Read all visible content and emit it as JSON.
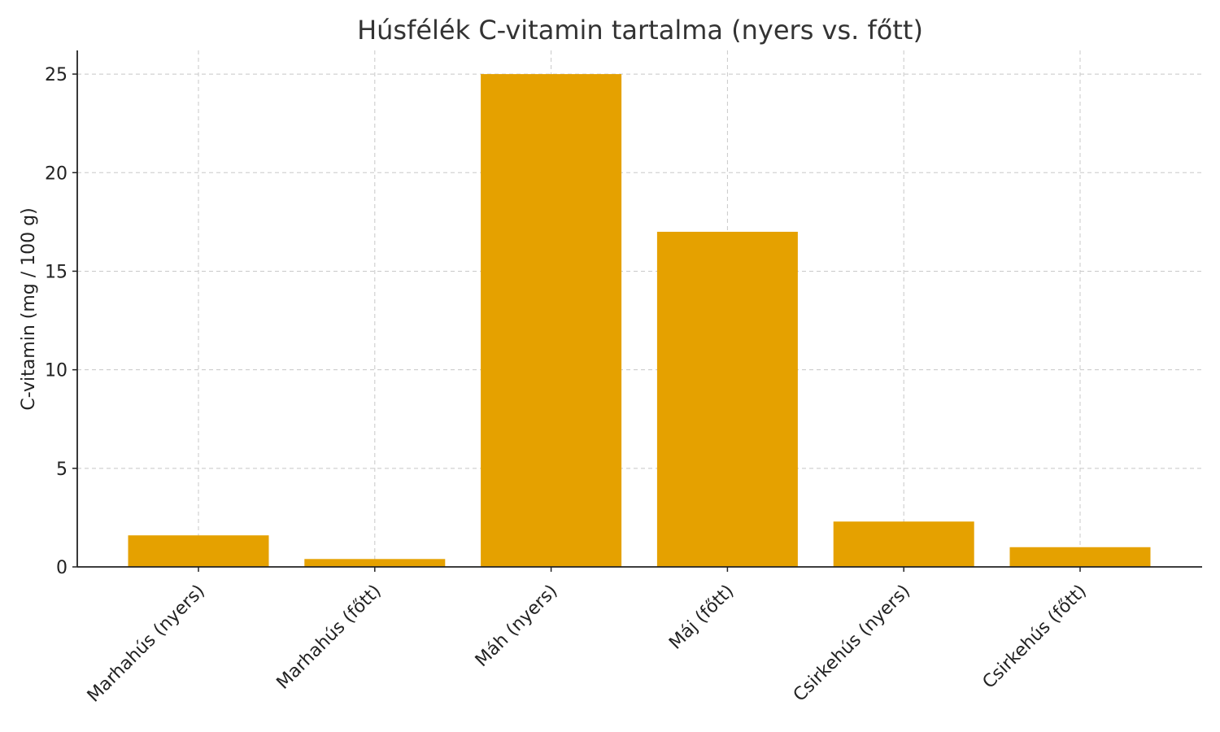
{
  "chart_data": {
    "type": "bar",
    "title": "Húsfélék C-vitamin tartalma (nyers vs. főtt)",
    "xlabel": "",
    "ylabel": "C-vitamin (mg / 100 g)",
    "categories": [
      "Marhahús (nyers)",
      "Marhahús (főtt)",
      "Máh (nyers)",
      "Máj (főtt)",
      "Csirkehús (nyers)",
      "Csirkehús (főtt)"
    ],
    "values": [
      1.6,
      0.4,
      25,
      17,
      2.3,
      1.0
    ],
    "ylim": [
      0,
      26.2
    ],
    "yticks": [
      0,
      5,
      10,
      15,
      20,
      25
    ],
    "grid": true,
    "bar_color": "#E5A100"
  }
}
